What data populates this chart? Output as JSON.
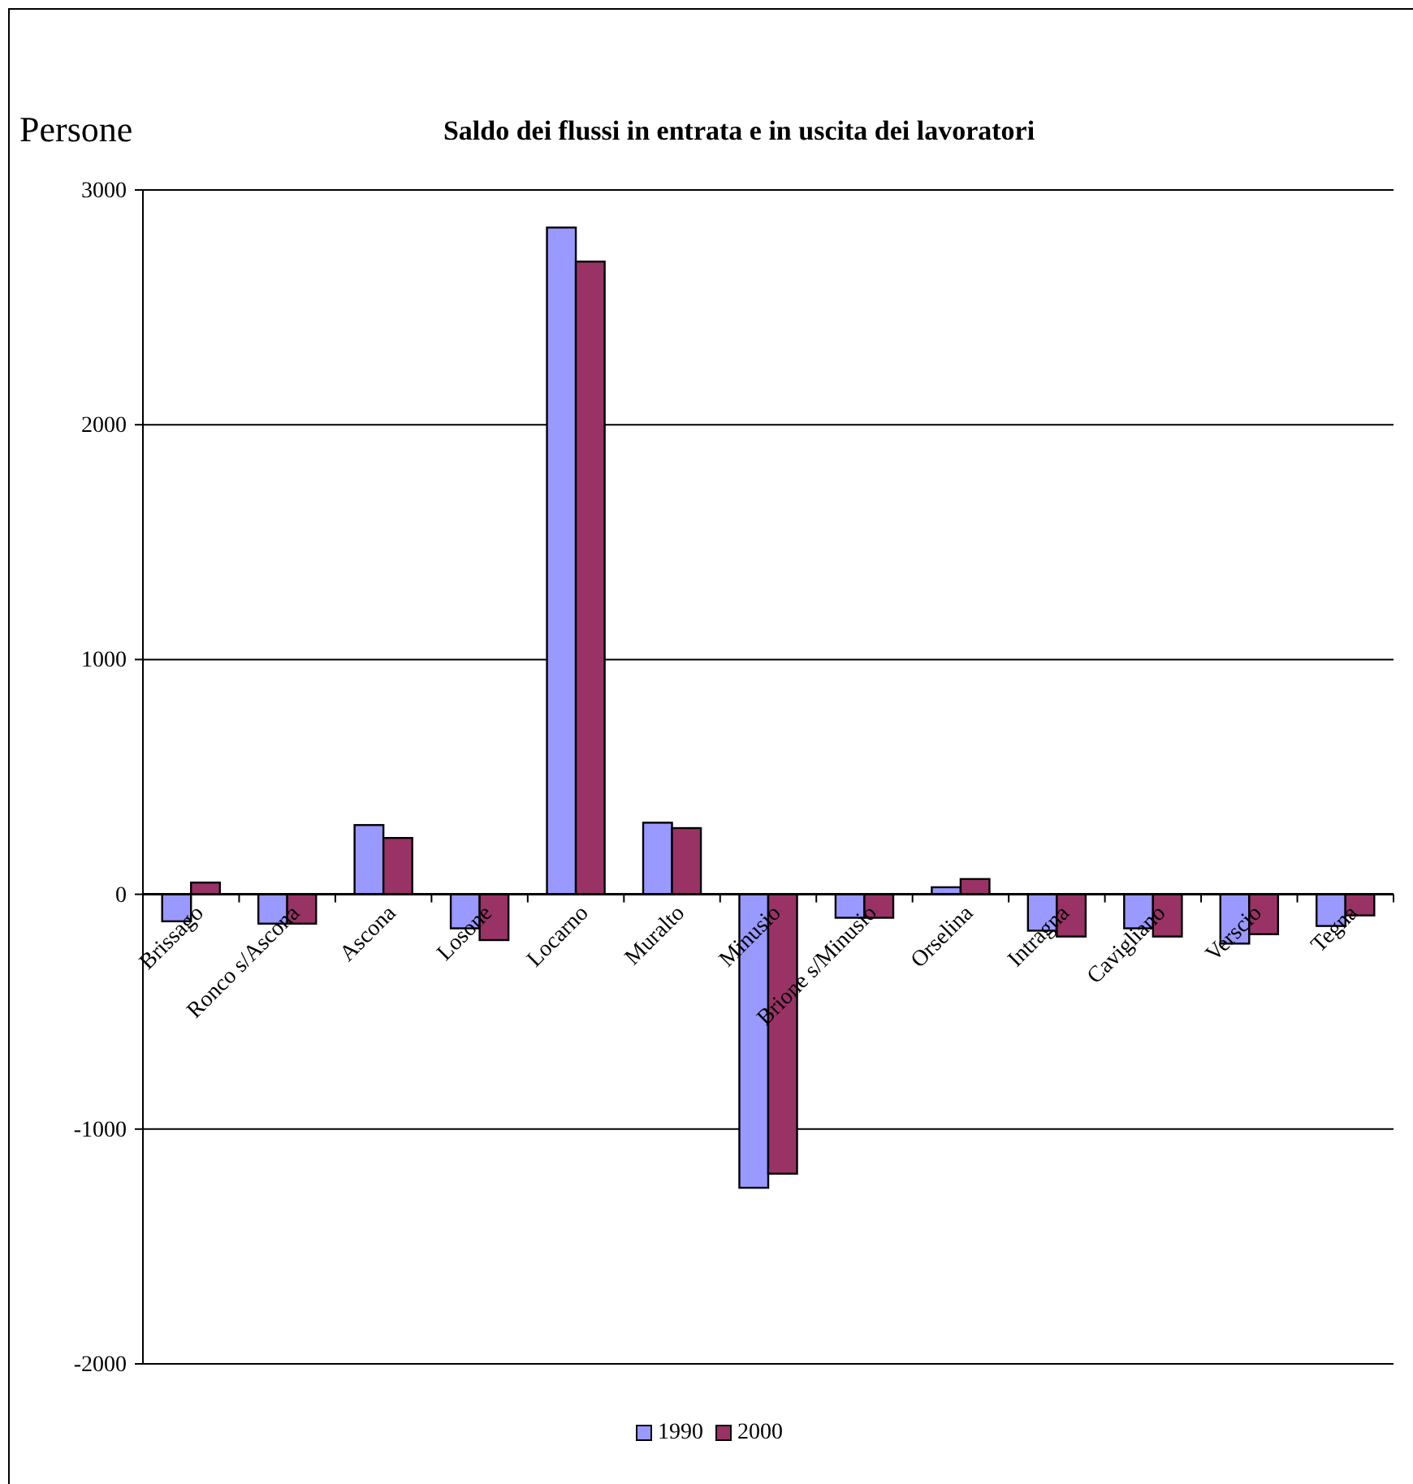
{
  "chart_data": {
    "type": "bar",
    "title": "Saldo dei flussi in entrata e in uscita dei lavoratori",
    "ylabel": "Persone",
    "categories": [
      "Brissago",
      "Ronco s/Ascona",
      "Ascona",
      "Losone",
      "Locarno",
      "Muralto",
      "Minusio",
      "Brione s/Minusio",
      "Orselina",
      "Intragna",
      "Cavigliano",
      "Verscio",
      "Tegna"
    ],
    "series": [
      {
        "name": "1990",
        "color": "#9999ff",
        "values": [
          -115,
          -125,
          295,
          -145,
          2840,
          305,
          -1250,
          -100,
          30,
          -155,
          -145,
          -210,
          -135
        ]
      },
      {
        "name": "2000",
        "color": "#993366",
        "values": [
          50,
          -125,
          240,
          -195,
          2695,
          282,
          -1190,
          -100,
          65,
          -180,
          -180,
          -170,
          -90
        ]
      }
    ],
    "ylim": [
      -2000,
      3000
    ],
    "yticks": [
      -2000,
      -1000,
      0,
      1000,
      2000,
      3000
    ],
    "grid": "y",
    "legend": "bottom"
  }
}
